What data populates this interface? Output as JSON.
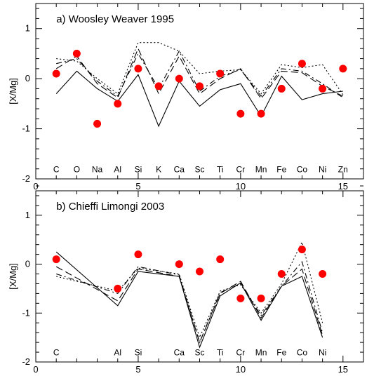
{
  "chart_data": [
    {
      "type": "line",
      "title": "a) Woosley Weaver 1995",
      "xlabel": "",
      "ylabel": "[X/Mg]",
      "xlim": [
        0,
        16
      ],
      "ylim": [
        -2,
        1.5
      ],
      "xticks": [
        0,
        5,
        10,
        15
      ],
      "yticks": [
        -2,
        -1,
        0,
        1
      ],
      "grid": false,
      "element_labels": [
        {
          "x": 1,
          "label": "C"
        },
        {
          "x": 2,
          "label": "O"
        },
        {
          "x": 3,
          "label": "Na"
        },
        {
          "x": 4,
          "label": "Al"
        },
        {
          "x": 5,
          "label": "Si"
        },
        {
          "x": 6,
          "label": "K"
        },
        {
          "x": 7,
          "label": "Ca"
        },
        {
          "x": 8,
          "label": "Sc"
        },
        {
          "x": 9,
          "label": "Ti"
        },
        {
          "x": 10,
          "label": "Cr"
        },
        {
          "x": 11,
          "label": "Mn"
        },
        {
          "x": 12,
          "label": "Fe"
        },
        {
          "x": 13,
          "label": "Co"
        },
        {
          "x": 14,
          "label": "Ni"
        },
        {
          "x": 15,
          "label": "Zn"
        }
      ],
      "observed_points": {
        "color": "#ff0000",
        "x": [
          1,
          2,
          3,
          4,
          5,
          6,
          7,
          8,
          9,
          10,
          11,
          12,
          13,
          14,
          15
        ],
        "y": [
          0.1,
          0.5,
          -0.9,
          -0.5,
          0.2,
          -0.15,
          0.0,
          -0.15,
          0.1,
          -0.7,
          -0.7,
          -0.2,
          0.3,
          -0.2,
          0.2
        ]
      },
      "series": [
        {
          "style": "solid",
          "x": [
            1,
            2,
            3,
            4,
            5,
            6,
            7,
            8,
            9,
            10,
            11,
            12,
            13,
            14,
            15
          ],
          "y": [
            -0.3,
            0.15,
            -0.2,
            -0.45,
            0.08,
            -0.95,
            -0.05,
            -0.55,
            -0.22,
            -0.1,
            -0.75,
            0.05,
            -0.42,
            -0.3,
            -0.25
          ]
        },
        {
          "style": "dashed",
          "x": [
            1,
            2,
            3,
            4,
            5,
            6,
            7,
            8,
            9,
            10,
            11,
            12,
            13,
            14,
            15
          ],
          "y": [
            0.2,
            0.45,
            -0.1,
            -0.38,
            0.6,
            -0.3,
            0.45,
            -0.3,
            0.0,
            0.2,
            -0.4,
            0.15,
            0.12,
            -0.15,
            -0.35
          ]
        },
        {
          "style": "dash-dot",
          "x": [
            1,
            2,
            3,
            4,
            5,
            6,
            7,
            8,
            9,
            10,
            11,
            12,
            13,
            14,
            15
          ],
          "y": [
            0.3,
            0.4,
            -0.05,
            -0.35,
            0.5,
            -0.2,
            0.55,
            -0.25,
            0.05,
            0.18,
            -0.35,
            0.2,
            0.15,
            -0.1,
            -0.38
          ]
        },
        {
          "style": "dotted",
          "x": [
            1,
            2,
            3,
            4,
            5,
            6,
            7,
            8,
            9,
            10,
            11,
            12,
            13,
            14,
            15
          ],
          "y": [
            0.4,
            0.35,
            0.0,
            -0.3,
            0.72,
            0.72,
            0.55,
            0.1,
            0.15,
            0.18,
            -0.3,
            0.28,
            0.22,
            0.28,
            -0.32
          ]
        }
      ]
    },
    {
      "type": "line",
      "title": "b) Chieffi Limongi 2003",
      "xlabel": "",
      "ylabel": "[X/Mg]",
      "xlim": [
        0,
        16
      ],
      "ylim": [
        -2,
        1.5
      ],
      "xticks": [
        0,
        5,
        10,
        15
      ],
      "yticks": [
        -2,
        -1,
        0,
        1
      ],
      "grid": false,
      "element_labels": [
        {
          "x": 1,
          "label": "C"
        },
        {
          "x": 4,
          "label": "Al"
        },
        {
          "x": 5,
          "label": "Si"
        },
        {
          "x": 7,
          "label": "Ca"
        },
        {
          "x": 8,
          "label": "Sc"
        },
        {
          "x": 9,
          "label": "Ti"
        },
        {
          "x": 10,
          "label": "Cr"
        },
        {
          "x": 11,
          "label": "Mn"
        },
        {
          "x": 12,
          "label": "Fe"
        },
        {
          "x": 13,
          "label": "Co"
        },
        {
          "x": 14,
          "label": "Ni"
        }
      ],
      "observed_points": {
        "color": "#ff0000",
        "x": [
          1,
          4,
          5,
          7,
          8,
          9,
          10,
          11,
          12,
          13,
          14
        ],
        "y": [
          0.1,
          -0.5,
          0.2,
          0.0,
          -0.15,
          0.1,
          -0.7,
          -0.7,
          -0.2,
          0.3,
          -0.2
        ]
      },
      "series": [
        {
          "style": "solid",
          "x": [
            1,
            4,
            5,
            7,
            8,
            9,
            10,
            11,
            12,
            13,
            14
          ],
          "y": [
            0.25,
            -0.85,
            -0.15,
            -0.25,
            -1.7,
            -0.65,
            -0.38,
            -1.15,
            -0.45,
            -0.25,
            -1.5
          ]
        },
        {
          "style": "dashed",
          "x": [
            1,
            4,
            5,
            7,
            8,
            9,
            10,
            11,
            12,
            13,
            14
          ],
          "y": [
            -0.05,
            -0.75,
            -0.1,
            -0.25,
            -1.6,
            -0.6,
            -0.35,
            -1.1,
            -0.45,
            -0.1,
            -1.45
          ]
        },
        {
          "style": "dash-dot",
          "x": [
            1,
            4,
            5,
            7,
            8,
            9,
            10,
            11,
            12,
            13,
            14
          ],
          "y": [
            -0.2,
            -0.6,
            -0.05,
            -0.22,
            -1.6,
            -0.58,
            -0.4,
            -1.05,
            -0.45,
            0.05,
            -1.4
          ]
        },
        {
          "style": "dotted",
          "x": [
            1,
            4,
            5,
            7,
            8,
            9,
            10,
            11,
            12,
            13,
            14
          ],
          "y": [
            -0.25,
            -0.55,
            -0.08,
            -0.2,
            -1.5,
            -0.55,
            -0.42,
            -1.0,
            -0.4,
            0.45,
            -1.2
          ]
        }
      ]
    }
  ]
}
